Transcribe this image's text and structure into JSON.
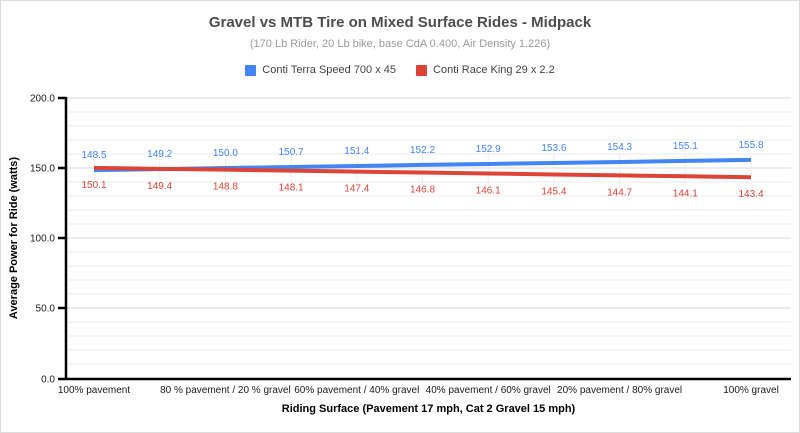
{
  "header": {
    "title": "Gravel vs MTB Tire on Mixed Surface Rides - Midpack",
    "subtitle": "(170 Lb Rider, 20 Lb bike, base CdA 0.400, Air Density 1.226)"
  },
  "chart_data": {
    "type": "line",
    "title": "Gravel vs MTB Tire on Mixed Surface Rides - Midpack",
    "subtitle": "(170 Lb Rider, 20 Lb bike, base CdA 0.400, Air Density 1.226)",
    "xlabel": "Riding Surface (Pavement 17 mph, Cat 2 Gravel 15 mph)",
    "ylabel": "Average Power for Ride (watts)",
    "ylim": [
      0,
      200
    ],
    "y_major_ticks": [
      0,
      50,
      100,
      150,
      200
    ],
    "y_tick_format_decimals": 1,
    "y_minor_step": 10,
    "grid": "horizontal gridlines on; minor every 10, major every 50",
    "legend_position": "top",
    "n_points": 11,
    "x_tick_labels": [
      "100% pavement",
      "80 % pavement / 20 % gravel",
      "60% pavement / 40% gravel",
      "40% pavement / 60% gravel",
      "20% pavement / 80% gravel",
      "100% gravel"
    ],
    "x_tick_point_indices": [
      0,
      2,
      4,
      6,
      8,
      10
    ],
    "series": [
      {
        "name": "Conti Terra Speed 700 x 45",
        "color": "#4285f4",
        "label_position": "above",
        "values": [
          148.5,
          149.2,
          150.0,
          150.7,
          151.4,
          152.2,
          152.9,
          153.6,
          154.3,
          155.1,
          155.8
        ]
      },
      {
        "name": "Conti Race King 29 x 2.2",
        "color": "#db4437",
        "label_position": "below",
        "values": [
          150.1,
          149.4,
          148.8,
          148.1,
          147.4,
          146.8,
          146.1,
          145.4,
          144.7,
          144.1,
          143.4
        ]
      }
    ],
    "colors": {
      "axis": "#000000",
      "grid_minor": "#ebebeb",
      "grid_major": "#d9d9d9",
      "point_tick": "#ededed",
      "axis_label": "#1a1a1a"
    }
  }
}
